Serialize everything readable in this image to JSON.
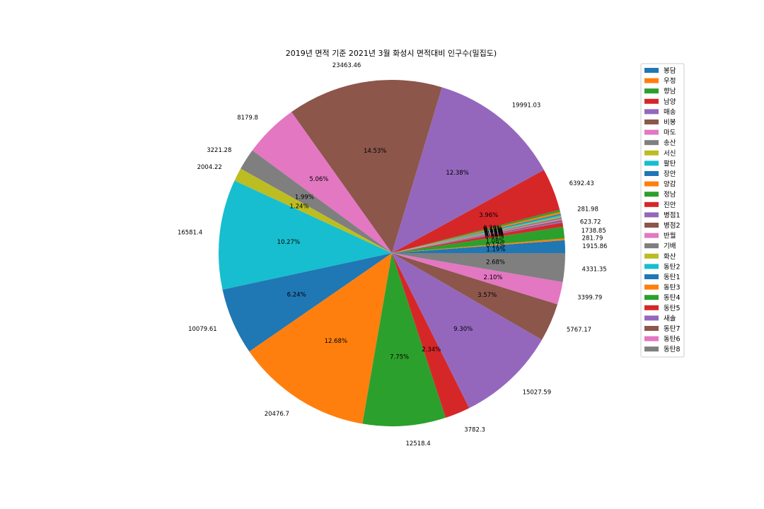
{
  "chart_data": {
    "type": "pie",
    "title": "2019년 면적 기준 2021년 3월 화성시 면적대비 인구수(밀집도)",
    "start_angle_deg": 0,
    "direction": "counterclockwise",
    "legend_position": "right",
    "slices": [
      {
        "label": "봉담",
        "value": 1915.86,
        "value_label": "1915.86",
        "pct_label": "1.19%",
        "color": "#1f77b4"
      },
      {
        "label": "우정",
        "value": 281.79,
        "value_label": "281.79",
        "pct_label": "0.17%",
        "color": "#ff7f0e"
      },
      {
        "label": "향남",
        "value": 1738.85,
        "value_label": "1738.85",
        "pct_label": "1.08%",
        "color": "#2ca02c"
      },
      {
        "label": "남양",
        "value": 623.72,
        "value_label": "623.72",
        "pct_label": "0.39%",
        "color": "#d62728"
      },
      {
        "label": "매송",
        "value": 200,
        "value_label": "",
        "pct_label": "0.12%",
        "color": "#9467bd"
      },
      {
        "label": "비봉",
        "value": 180,
        "value_label": "",
        "pct_label": "0.11%",
        "color": "#8c564b"
      },
      {
        "label": "마도",
        "value": 190,
        "value_label": "",
        "pct_label": "0.12%",
        "color": "#e377c2"
      },
      {
        "label": "송산",
        "value": 240,
        "value_label": "",
        "pct_label": "0.15%",
        "color": "#7f7f7f"
      },
      {
        "label": "서신",
        "value": 150,
        "value_label": "",
        "pct_label": "0.09%",
        "color": "#bcbd22"
      },
      {
        "label": "팔탄",
        "value": 210,
        "value_label": "",
        "pct_label": "0.13%",
        "color": "#17becf"
      },
      {
        "label": "장안",
        "value": 170,
        "value_label": "",
        "pct_label": "0.11%",
        "color": "#1f77b4"
      },
      {
        "label": "양감",
        "value": 281.98,
        "value_label": "281.98",
        "pct_label": "0.17%",
        "color": "#ff7f0e"
      },
      {
        "label": "정남",
        "value": 320,
        "value_label": "",
        "pct_label": "0.20%",
        "color": "#2ca02c"
      },
      {
        "label": "진안",
        "value": 6392.43,
        "value_label": "6392.43",
        "pct_label": "3.96%",
        "color": "#d62728"
      },
      {
        "label": "병점1",
        "value": 19991.03,
        "value_label": "19991.03",
        "pct_label": "12.38%",
        "color": "#9467bd"
      },
      {
        "label": "병점2",
        "value": 23463.46,
        "value_label": "23463.46",
        "pct_label": "14.53%",
        "color": "#8c564b"
      },
      {
        "label": "반월",
        "value": 8179.8,
        "value_label": "8179.8",
        "pct_label": "5.06%",
        "color": "#e377c2"
      },
      {
        "label": "기배",
        "value": 3221.28,
        "value_label": "3221.28",
        "pct_label": "1.99%",
        "color": "#7f7f7f"
      },
      {
        "label": "화산",
        "value": 2004.22,
        "value_label": "2004.22",
        "pct_label": "1.24%",
        "color": "#bcbd22"
      },
      {
        "label": "동탄2",
        "value": 16581.4,
        "value_label": "16581.4",
        "pct_label": "10.27%",
        "color": "#17becf"
      },
      {
        "label": "동탄1",
        "value": 10079.61,
        "value_label": "10079.61",
        "pct_label": "6.24%",
        "color": "#1f77b4"
      },
      {
        "label": "동탄3",
        "value": 20476.7,
        "value_label": "20476.7",
        "pct_label": "12.68%",
        "color": "#ff7f0e"
      },
      {
        "label": "동탄4",
        "value": 12518.4,
        "value_label": "12518.4",
        "pct_label": "7.75%",
        "color": "#2ca02c"
      },
      {
        "label": "동탄5",
        "value": 3782.3,
        "value_label": "3782.3",
        "pct_label": "2.34%",
        "color": "#d62728"
      },
      {
        "label": "새솔",
        "value": 15027.59,
        "value_label": "15027.59",
        "pct_label": "9.30%",
        "color": "#9467bd"
      },
      {
        "label": "동탄7",
        "value": 5767.17,
        "value_label": "5767.17",
        "pct_label": "3.57%",
        "color": "#8c564b"
      },
      {
        "label": "동탄6",
        "value": 3399.79,
        "value_label": "3399.79",
        "pct_label": "2.10%",
        "color": "#e377c2"
      },
      {
        "label": "동탄8",
        "value": 4331.35,
        "value_label": "4331.35",
        "pct_label": "2.68%",
        "color": "#7f7f7f"
      }
    ]
  }
}
